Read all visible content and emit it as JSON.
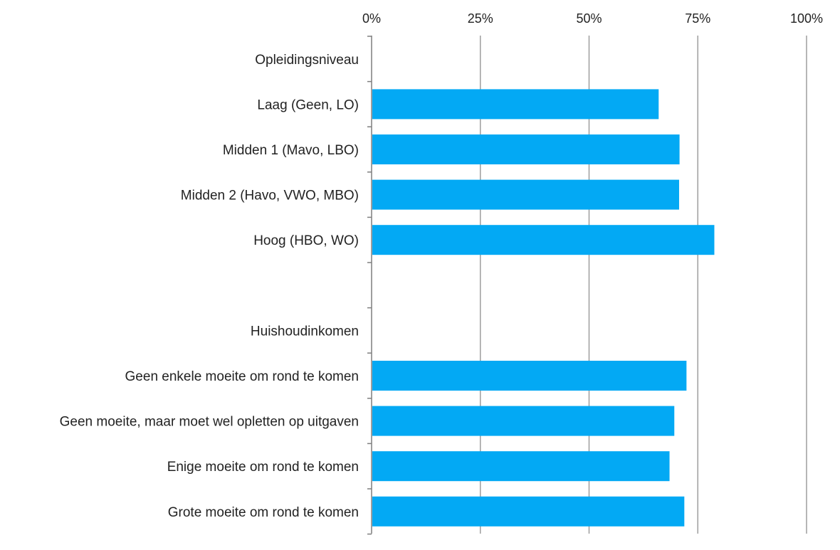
{
  "chart_data": {
    "type": "bar",
    "orientation": "horizontal",
    "x_axis_position": "top",
    "xlim": [
      0,
      100
    ],
    "x_ticks": [
      0,
      25,
      50,
      75,
      100
    ],
    "x_tick_labels": [
      "0%",
      "25%",
      "50%",
      "75%",
      "100%"
    ],
    "grid": true,
    "categories": [
      "Opleidingsniveau",
      "Laag (Geen, LO)",
      "Midden 1 (Mavo, LBO)",
      "Midden 2 (Havo, VWO, MBO)",
      "Hoog (HBO, WO)",
      "",
      "Huishoudinkomen",
      "Geen enkele moeite om rond te komen",
      "Geen moeite, maar moet wel opletten op uitgaven",
      "Enige moeite om rond te komen",
      "Grote moeite om rond te komen"
    ],
    "values": [
      null,
      66,
      70.8,
      70.7,
      78.8,
      null,
      null,
      72.4,
      69.6,
      68.5,
      71.9
    ],
    "colors": {
      "bar": "#03A9F4",
      "grid": "#9e9e9e",
      "axis": "#7f7f7f"
    }
  }
}
